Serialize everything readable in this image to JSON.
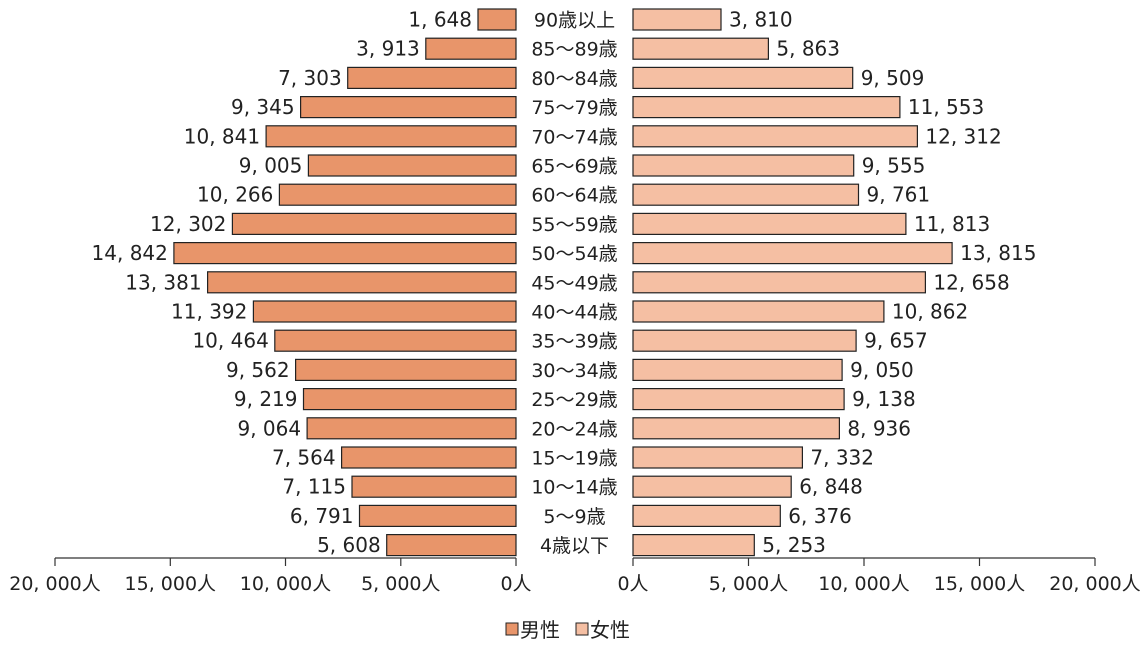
{
  "chart_data": {
    "type": "bar",
    "orientation": "population-pyramid",
    "categories": [
      "90歳以上",
      "85～89歳",
      "80～84歳",
      "75～79歳",
      "70～74歳",
      "65～69歳",
      "60～64歳",
      "55～59歳",
      "50～54歳",
      "45～49歳",
      "40～44歳",
      "35～39歳",
      "30～34歳",
      "25～29歳",
      "20～24歳",
      "15～19歳",
      "10～14歳",
      "5～9歳",
      "4歳以下"
    ],
    "series": [
      {
        "name": "男性",
        "side": "left",
        "color": "#e8956a",
        "values": [
          1648,
          3913,
          7303,
          9345,
          10841,
          9005,
          10266,
          12302,
          14842,
          13381,
          11392,
          10464,
          9562,
          9219,
          9064,
          7564,
          7115,
          6791,
          5608
        ],
        "labels": [
          "1, 648",
          "3, 913",
          "7, 303",
          "9, 345",
          "10, 841",
          "9, 005",
          "10, 266",
          "12, 302",
          "14, 842",
          "13, 381",
          "11, 392",
          "10, 464",
          "9, 562",
          "9, 219",
          "9, 064",
          "7, 564",
          "7, 115",
          "6, 791",
          "5, 608"
        ]
      },
      {
        "name": "女性",
        "side": "right",
        "color": "#f5bfa3",
        "values": [
          3810,
          5863,
          9509,
          11553,
          12312,
          9555,
          9761,
          11813,
          13815,
          12658,
          10862,
          9657,
          9050,
          9138,
          8936,
          7332,
          6848,
          6376,
          5253
        ],
        "labels": [
          "3, 810",
          "5, 863",
          "9, 509",
          "11, 553",
          "12, 312",
          "9, 555",
          "9, 761",
          "11, 813",
          "13, 815",
          "12, 658",
          "10, 862",
          "9, 657",
          "9, 050",
          "9, 138",
          "8, 936",
          "7, 332",
          "6, 848",
          "6, 376",
          "5, 253"
        ]
      }
    ],
    "xlim": [
      0,
      20000
    ],
    "left_ticks": [
      {
        "value": 20000,
        "label": "20, 000人"
      },
      {
        "value": 15000,
        "label": "15, 000人"
      },
      {
        "value": 10000,
        "label": "10, 000人"
      },
      {
        "value": 5000,
        "label": "5, 000人"
      },
      {
        "value": 0,
        "label": "0人"
      }
    ],
    "right_ticks": [
      {
        "value": 0,
        "label": "0人"
      },
      {
        "value": 5000,
        "label": "5, 000人"
      },
      {
        "value": 10000,
        "label": "10, 000人"
      },
      {
        "value": 15000,
        "label": "15, 000人"
      },
      {
        "value": 20000,
        "label": "20, 000人"
      }
    ],
    "legend": {
      "position": "bottom-center",
      "items": [
        "男性",
        "女性"
      ]
    },
    "grid": false,
    "bar_stroke": "#222222"
  }
}
